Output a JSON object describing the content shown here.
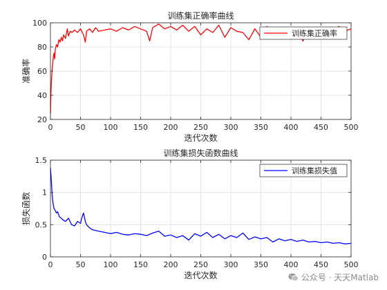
{
  "chart_data": [
    {
      "type": "line",
      "title": "训练集正确率曲线",
      "xlabel": "迭代次数",
      "ylabel": "准确率",
      "xlim": [
        0,
        500
      ],
      "ylim": [
        20,
        100
      ],
      "xticks": [
        0,
        50,
        100,
        150,
        200,
        250,
        300,
        350,
        400,
        450,
        500
      ],
      "yticks": [
        20,
        40,
        60,
        80,
        100
      ],
      "grid": true,
      "legend_position": "top-right",
      "series": [
        {
          "name": "训练集正确率",
          "color": "#ff0000",
          "x": [
            0,
            1,
            2,
            3,
            4,
            5,
            6,
            7,
            8,
            10,
            12,
            14,
            16,
            18,
            20,
            22,
            25,
            28,
            30,
            33,
            36,
            40,
            45,
            50,
            55,
            58,
            60,
            65,
            70,
            75,
            80,
            90,
            100,
            110,
            120,
            130,
            140,
            150,
            160,
            165,
            170,
            180,
            190,
            200,
            210,
            220,
            230,
            240,
            250,
            260,
            270,
            280,
            290,
            300,
            310,
            320,
            330,
            340,
            350,
            360,
            370,
            380,
            390,
            400,
            410,
            420,
            430,
            440,
            450,
            460,
            470,
            480,
            490,
            500
          ],
          "y": [
            25,
            45,
            55,
            62,
            68,
            72,
            75,
            70,
            78,
            82,
            80,
            86,
            84,
            88,
            85,
            90,
            87,
            95,
            89,
            93,
            92,
            94,
            92,
            95,
            90,
            84,
            93,
            95,
            92,
            96,
            93,
            94,
            95,
            93,
            96,
            94,
            97,
            95,
            93,
            85,
            96,
            99,
            95,
            97,
            94,
            98,
            93,
            97,
            90,
            95,
            92,
            98,
            88,
            96,
            93,
            92,
            86,
            95,
            88,
            97,
            92,
            95,
            88,
            96,
            93,
            85,
            95,
            92,
            96,
            88,
            95,
            97,
            93,
            95
          ]
        }
      ]
    },
    {
      "type": "line",
      "title": "训练集损失函数曲线",
      "xlabel": "迭代次数",
      "ylabel": "损失函数",
      "xlim": [
        0,
        500
      ],
      "ylim": [
        0,
        1.5
      ],
      "xticks": [
        0,
        50,
        100,
        150,
        200,
        250,
        300,
        350,
        400,
        450,
        500
      ],
      "yticks": [
        0,
        0.5,
        1,
        1.5
      ],
      "grid": true,
      "legend_position": "top-right",
      "series": [
        {
          "name": "训练集损失值",
          "color": "#0000ff",
          "x": [
            0,
            1,
            2,
            3,
            4,
            5,
            6,
            8,
            10,
            12,
            15,
            18,
            20,
            25,
            30,
            35,
            40,
            45,
            50,
            52,
            55,
            58,
            60,
            65,
            70,
            80,
            90,
            100,
            110,
            120,
            130,
            140,
            150,
            160,
            170,
            180,
            190,
            200,
            210,
            220,
            230,
            240,
            250,
            260,
            270,
            280,
            290,
            300,
            310,
            320,
            330,
            340,
            350,
            360,
            370,
            380,
            390,
            400,
            410,
            420,
            430,
            440,
            450,
            460,
            470,
            480,
            490,
            500
          ],
          "y": [
            1.38,
            1.25,
            1.1,
            0.95,
            0.85,
            0.8,
            0.75,
            0.72,
            0.68,
            0.7,
            0.62,
            0.6,
            0.58,
            0.55,
            0.6,
            0.5,
            0.48,
            0.55,
            0.52,
            0.6,
            0.68,
            0.55,
            0.5,
            0.45,
            0.42,
            0.4,
            0.38,
            0.36,
            0.38,
            0.35,
            0.34,
            0.36,
            0.35,
            0.33,
            0.37,
            0.4,
            0.32,
            0.34,
            0.3,
            0.33,
            0.26,
            0.36,
            0.32,
            0.38,
            0.3,
            0.35,
            0.28,
            0.33,
            0.3,
            0.37,
            0.27,
            0.31,
            0.28,
            0.3,
            0.23,
            0.28,
            0.25,
            0.27,
            0.24,
            0.26,
            0.23,
            0.24,
            0.22,
            0.23,
            0.21,
            0.22,
            0.2,
            0.21
          ]
        }
      ]
    }
  ],
  "watermark": {
    "text": "公众号 · 天天Matlab",
    "icon": "wechat-icon"
  }
}
